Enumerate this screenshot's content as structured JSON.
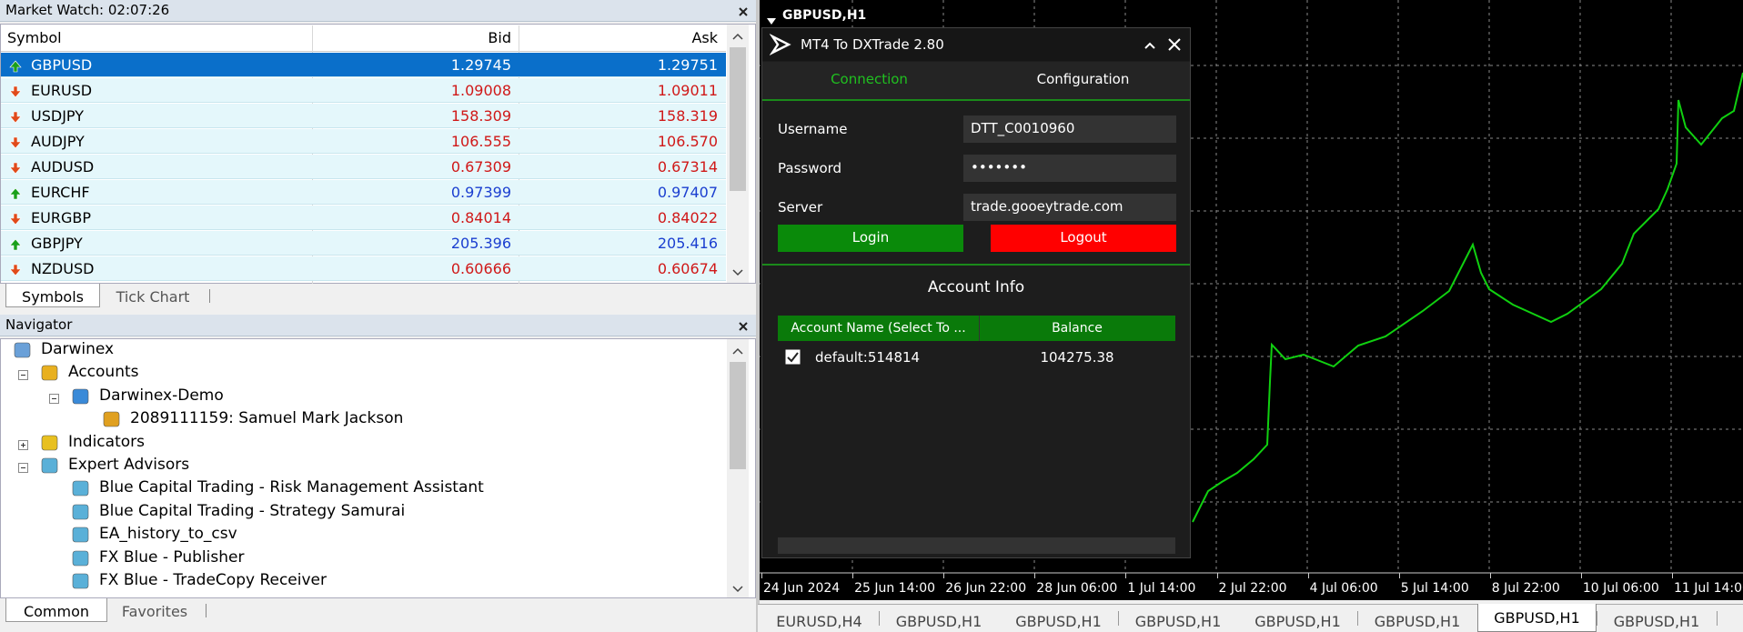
{
  "market_watch": {
    "title": "Market Watch: 02:07:26",
    "columns": [
      "Symbol",
      "Bid",
      "Ask"
    ],
    "rows": [
      {
        "symbol": "GBPUSD",
        "bid": "1.29745",
        "ask": "1.29751",
        "direction": "up",
        "selected": true
      },
      {
        "symbol": "EURUSD",
        "bid": "1.09008",
        "ask": "1.09011",
        "direction": "down"
      },
      {
        "symbol": "USDJPY",
        "bid": "158.309",
        "ask": "158.319",
        "direction": "down"
      },
      {
        "symbol": "AUDJPY",
        "bid": "106.555",
        "ask": "106.570",
        "direction": "down"
      },
      {
        "symbol": "AUDUSD",
        "bid": "0.67309",
        "ask": "0.67314",
        "direction": "down"
      },
      {
        "symbol": "EURCHF",
        "bid": "0.97399",
        "ask": "0.97407",
        "direction": "up"
      },
      {
        "symbol": "EURGBP",
        "bid": "0.84014",
        "ask": "0.84022",
        "direction": "down"
      },
      {
        "symbol": "GBPJPY",
        "bid": "205.396",
        "ask": "205.416",
        "direction": "up"
      },
      {
        "symbol": "NZDUSD",
        "bid": "0.60666",
        "ask": "0.60674",
        "direction": "down"
      }
    ],
    "tabs": [
      "Symbols",
      "Tick Chart"
    ]
  },
  "navigator": {
    "title": "Navigator",
    "items": [
      "Darwinex",
      "Accounts",
      "Darwinex-Demo",
      "2089111159: Samuel Mark Jackson",
      "Indicators",
      "Expert Advisors",
      "Blue Capital Trading - Risk Management Assistant",
      "Blue Capital Trading - Strategy Samurai",
      "EA_history_to_csv",
      "FX Blue - Publisher",
      "FX Blue - TradeCopy Receiver"
    ],
    "tabs": [
      "Common",
      "Favorites"
    ]
  },
  "chart": {
    "title": "GBPUSD,H1",
    "x_labels": [
      "24 Jun 2024",
      "25 Jun 14:00",
      "26 Jun 22:00",
      "28 Jun 06:00",
      "1 Jul 14:00",
      "2 Jul 22:00",
      "4 Jul 06:00",
      "5 Jul 14:00",
      "8 Jul 22:00",
      "10 Jul 06:00",
      "11 Jul 14:00"
    ],
    "tabs": [
      "EURUSD,H4",
      "GBPUSD,H1",
      "GBPUSD,H1",
      "GBPUSD,H1",
      "GBPUSD,H1",
      "GBPUSD,H1",
      "GBPUSD,H1",
      "GBPUSD,H1"
    ],
    "active_tab": 6
  },
  "dialog": {
    "title": "MT4 To DXTrade 2.80",
    "tabs": [
      "Connection",
      "Configuration"
    ],
    "fields": [
      {
        "label": "Username",
        "value": "DTT_C0010960"
      },
      {
        "label": "Password",
        "value": "•••••••"
      },
      {
        "label": "Server",
        "value": "trade.gooeytrade.com"
      }
    ],
    "buttons": [
      "Login",
      "Logout"
    ],
    "section": "Account Info",
    "table": {
      "columns": [
        "Account Name (Select To ...",
        "Balance"
      ],
      "rows": [
        {
          "name": "default:514814",
          "balance": "104275.38",
          "checked": true
        }
      ]
    }
  }
}
